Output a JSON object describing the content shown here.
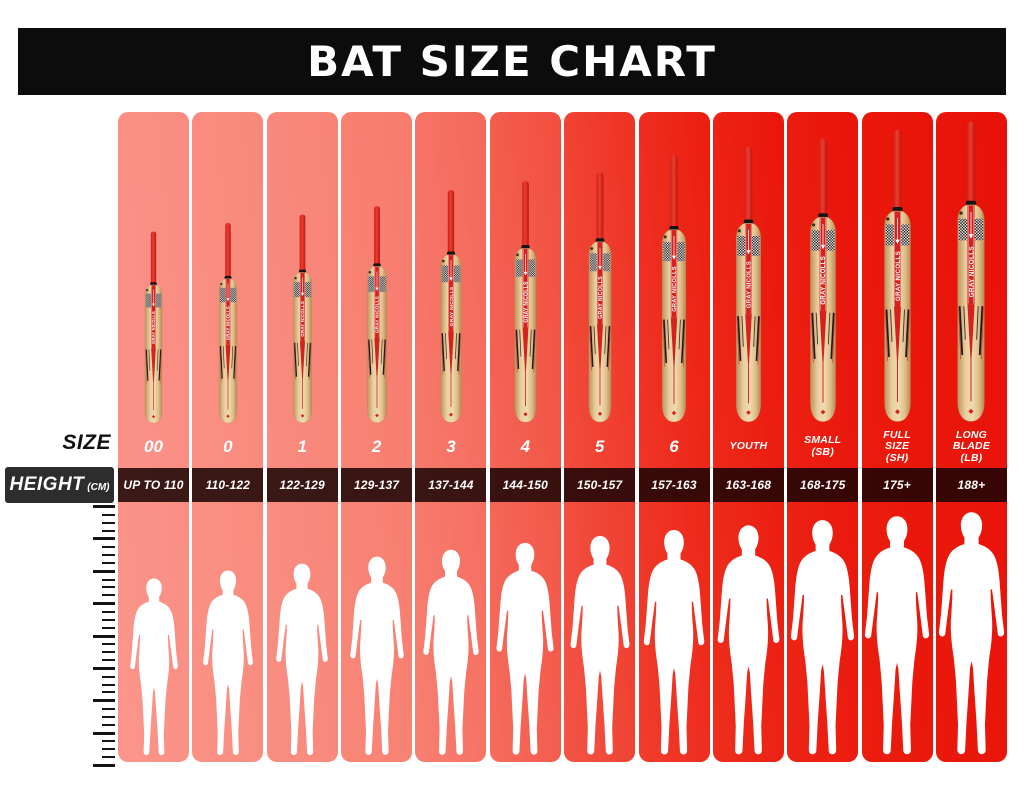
{
  "banner": {
    "title": "BAT SIZE CHART"
  },
  "labels": {
    "size": "SIZE",
    "height": "HEIGHT",
    "height_unit": "(CM)"
  },
  "brand_on_bat": "GRAY NICOLLS",
  "palette": {
    "banner_bg": "#0c0c0c",
    "height_label_bg": "#2d2d2d",
    "height_cell_overlay": "rgba(24,4,4,0.85)",
    "bat_red": "#d6211f",
    "bat_handle_red": "#e02a22",
    "bat_wood": "#e3c496",
    "silhouette": "#ffffff"
  },
  "columns": [
    {
      "size": "00",
      "height": "UP TO 110",
      "color": "#f98b80",
      "color_light": "#fb958b",
      "bat_h": 197,
      "sil_h": 182
    },
    {
      "size": "0",
      "height": "110-122",
      "color": "#f98879",
      "color_light": "#fa9286",
      "bat_h": 206,
      "sil_h": 190
    },
    {
      "size": "1",
      "height": "122-129",
      "color": "#f88376",
      "color_light": "#f98e82",
      "bat_h": 216,
      "sil_h": 197
    },
    {
      "size": "2",
      "height": "129-137",
      "color": "#f77b6d",
      "color_light": "#f88778",
      "bat_h": 226,
      "sil_h": 204
    },
    {
      "size": "3",
      "height": "137-144",
      "color": "#f4685a",
      "color_light": "#f77f71",
      "bat_h": 239,
      "sil_h": 211
    },
    {
      "size": "4",
      "height": "144-150",
      "color": "#f14e3f",
      "color_light": "#f56c5d",
      "bat_h": 248,
      "sil_h": 218
    },
    {
      "size": "5",
      "height": "150-157",
      "color": "#ee3122",
      "color_light": "#f25546",
      "bat_h": 261,
      "sil_h": 225
    },
    {
      "size": "6",
      "height": "157-163",
      "color": "#ec1d10",
      "color_light": "#f03d2c",
      "bat_h": 274,
      "sil_h": 231
    },
    {
      "size": "YOUTH",
      "height": "163-168",
      "color": "#ea150b",
      "color_light": "#ee2f1e",
      "bat_h": 284,
      "sil_h": 236
    },
    {
      "size": "SMALL\n(SB)",
      "height": "168-175",
      "color": "#e91309",
      "color_light": "#ec2515",
      "bat_h": 292,
      "sil_h": 241
    },
    {
      "size": "FULL\nSIZE\n(SH)",
      "height": "175+",
      "color": "#e91208",
      "color_light": "#eb1e0e",
      "bat_h": 302,
      "sil_h": 245
    },
    {
      "size": "LONG\nBLADE\n(LB)",
      "height": "188+",
      "color": "#e81108",
      "color_light": "#ea190c",
      "bat_h": 310,
      "sil_h": 249
    }
  ],
  "ruler": {
    "tick_count": 33,
    "major_every": 4
  },
  "chart_data": {
    "type": "table",
    "title": "BAT SIZE CHART",
    "columns": [
      "SIZE",
      "HEIGHT (CM)"
    ],
    "rows": [
      [
        "00",
        "UP TO 110"
      ],
      [
        "0",
        "110-122"
      ],
      [
        "1",
        "122-129"
      ],
      [
        "2",
        "129-137"
      ],
      [
        "3",
        "137-144"
      ],
      [
        "4",
        "144-150"
      ],
      [
        "5",
        "150-157"
      ],
      [
        "6",
        "157-163"
      ],
      [
        "YOUTH",
        "163-168"
      ],
      [
        "SMALL (SB)",
        "168-175"
      ],
      [
        "FULL SIZE (SH)",
        "175+"
      ],
      [
        "LONG BLADE (LB)",
        "188+"
      ]
    ],
    "layout_hints": {
      "orientation": "columns-left-to-right",
      "color_scale": "salmon-pink to bright red with increasing size",
      "extras": "each column shows a scaled cricket bat above and a human height silhouette below"
    }
  }
}
